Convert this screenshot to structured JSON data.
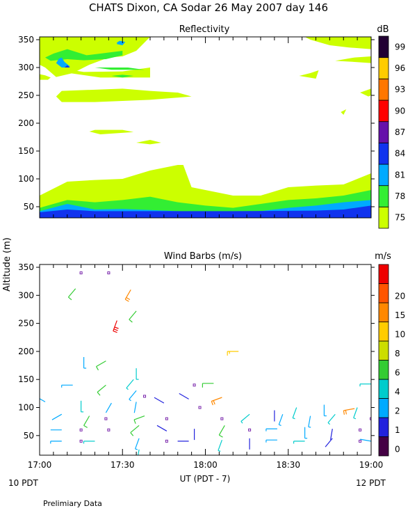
{
  "title": "CHATS Dixon, CA  Sodar  26 May 2007  day 146",
  "xlabel": "UT  (PDT - 7)",
  "ylabel": "Altitude (m)",
  "x_note_left": "10 PDT",
  "x_note_right": "12 PDT",
  "footnote": "Prelimiary Data",
  "chart_data": [
    {
      "type": "heatmap",
      "title": "Reflectivity",
      "colorbar_label": "dB",
      "colorbar_ticks": [
        "75",
        "78",
        "81",
        "84",
        "87",
        "90",
        "93",
        "96",
        "99"
      ],
      "colorbar_colors": [
        "#ccff00",
        "#33ee33",
        "#00aaff",
        "#1133ee",
        "#6611aa",
        "#ff0000",
        "#ff7700",
        "#ffcc00",
        "#220033"
      ],
      "xlim_minutes_after_1700": [
        0,
        120
      ],
      "x_ticks": [
        "17:00",
        "17:30",
        "18:00",
        "18:30",
        "19:00"
      ],
      "ylim": [
        30,
        355
      ],
      "y_ticks": [
        50,
        100,
        150,
        200,
        250,
        300,
        350
      ],
      "contour_levels": [
        {
          "level": 75,
          "lower_envelope": [
            [
              0,
              70
            ],
            [
              10,
              95
            ],
            [
              20,
              98
            ],
            [
              30,
              100
            ],
            [
              40,
              115
            ],
            [
              50,
              125
            ],
            [
              52,
              125
            ],
            [
              55,
              85
            ],
            [
              70,
              70
            ],
            [
              80,
              70
            ],
            [
              90,
              85
            ],
            [
              100,
              88
            ],
            [
              110,
              90
            ],
            [
              120,
              110
            ]
          ]
        },
        {
          "level": 78,
          "lower_envelope": [
            [
              0,
              48
            ],
            [
              10,
              62
            ],
            [
              20,
              58
            ],
            [
              30,
              62
            ],
            [
              40,
              68
            ],
            [
              50,
              58
            ],
            [
              60,
              52
            ],
            [
              70,
              48
            ],
            [
              80,
              55
            ],
            [
              90,
              62
            ],
            [
              100,
              65
            ],
            [
              110,
              70
            ],
            [
              120,
              80
            ]
          ]
        },
        {
          "level": 81,
          "lower_envelope": [
            [
              0,
              42
            ],
            [
              10,
              55
            ],
            [
              20,
              45
            ],
            [
              30,
              46
            ],
            [
              40,
              44
            ],
            [
              50,
              42
            ],
            [
              60,
              40
            ],
            [
              80,
              42
            ],
            [
              90,
              48
            ],
            [
              100,
              52
            ],
            [
              110,
              58
            ],
            [
              120,
              62
            ]
          ]
        },
        {
          "level": 84,
          "lower_envelope": [
            [
              0,
              40
            ],
            [
              10,
              45
            ],
            [
              20,
              42
            ],
            [
              70,
              42
            ],
            [
              100,
              43
            ],
            [
              110,
              45
            ],
            [
              120,
              52
            ]
          ]
        }
      ]
    },
    {
      "type": "scatter",
      "title": "Wind Barbs (m/s)",
      "colorbar_label": "m/s",
      "colorbar_ticks": [
        "0",
        "1",
        "2",
        "4",
        "6",
        "8",
        "10",
        "15",
        "20"
      ],
      "colorbar_colors": [
        "#440044",
        "#2222dd",
        "#00aaff",
        "#00cccc",
        "#33cc33",
        "#ccdd00",
        "#ffcc00",
        "#ff8800",
        "#ff5500",
        "#ee0000"
      ],
      "xlim_minutes_after_1700": [
        0,
        120
      ],
      "x_ticks": [
        "17:00",
        "17:30",
        "18:00",
        "18:30",
        "19:00"
      ],
      "ylim": [
        15,
        355
      ],
      "y_ticks": [
        50,
        100,
        150,
        200,
        250,
        300,
        350
      ],
      "barbs": [
        {
          "t": 15,
          "z": 340,
          "speed": 0,
          "dir": 0
        },
        {
          "t": 25,
          "z": 340,
          "speed": 0,
          "dir": 0
        },
        {
          "t": 13,
          "z": 312,
          "speed": 6,
          "dir": 220
        },
        {
          "t": 33,
          "z": 310,
          "speed": 10,
          "dir": 210
        },
        {
          "t": 35,
          "z": 272,
          "speed": 6,
          "dir": 220
        },
        {
          "t": 28,
          "z": 255,
          "speed": 15,
          "dir": 200
        },
        {
          "t": 72,
          "z": 200,
          "speed": 8,
          "dir": 270
        },
        {
          "t": 16,
          "z": 190,
          "speed": 3,
          "dir": 180
        },
        {
          "t": 24,
          "z": 183,
          "speed": 5,
          "dir": 240
        },
        {
          "t": 35,
          "z": 170,
          "speed": 4,
          "dir": 180
        },
        {
          "t": 34,
          "z": 150,
          "speed": 4,
          "dir": 220
        },
        {
          "t": 0,
          "z": 122,
          "speed": 8,
          "dir": 200
        },
        {
          "t": 12,
          "z": 140,
          "speed": 3,
          "dir": 270
        },
        {
          "t": 24,
          "z": 140,
          "speed": 5,
          "dir": 230
        },
        {
          "t": 56,
          "z": 140,
          "speed": 0,
          "dir": 0
        },
        {
          "t": 63,
          "z": 143,
          "speed": 6,
          "dir": 270
        },
        {
          "t": 35,
          "z": 130,
          "speed": 3,
          "dir": 220
        },
        {
          "t": 38,
          "z": 120,
          "speed": 0,
          "dir": 0
        },
        {
          "t": 15,
          "z": 112,
          "speed": 4,
          "dir": 180
        },
        {
          "t": 2,
          "z": 110,
          "speed": 3,
          "dir": 300
        },
        {
          "t": 26,
          "z": 108,
          "speed": 2,
          "dir": 210
        },
        {
          "t": 35,
          "z": 110,
          "speed": 2,
          "dir": 190
        },
        {
          "t": 45,
          "z": 108,
          "speed": 1,
          "dir": 300
        },
        {
          "t": 54,
          "z": 115,
          "speed": 1,
          "dir": 300
        },
        {
          "t": 66,
          "z": 118,
          "speed": 10,
          "dir": 250
        },
        {
          "t": 93,
          "z": 100,
          "speed": 4,
          "dir": 200
        },
        {
          "t": 103,
          "z": 105,
          "speed": 3,
          "dir": 180
        },
        {
          "t": 115,
          "z": 100,
          "speed": 4,
          "dir": 200
        },
        {
          "t": 114,
          "z": 98,
          "speed": 10,
          "dir": 260
        },
        {
          "t": 120,
          "z": 142,
          "speed": 4,
          "dir": 270
        },
        {
          "t": 8,
          "z": 88,
          "speed": 2,
          "dir": 240
        },
        {
          "t": 18,
          "z": 85,
          "speed": 6,
          "dir": 210
        },
        {
          "t": 24,
          "z": 80,
          "speed": 0,
          "dir": 0
        },
        {
          "t": 38,
          "z": 85,
          "speed": 6,
          "dir": 250
        },
        {
          "t": 46,
          "z": 80,
          "speed": 0,
          "dir": 0
        },
        {
          "t": 58,
          "z": 100,
          "speed": 0,
          "dir": 0
        },
        {
          "t": 66,
          "z": 80,
          "speed": 0,
          "dir": 0
        },
        {
          "t": 76,
          "z": 88,
          "speed": 4,
          "dir": 230
        },
        {
          "t": 85,
          "z": 95,
          "speed": 1,
          "dir": 180
        },
        {
          "t": 88,
          "z": 88,
          "speed": 3,
          "dir": 200
        },
        {
          "t": 98,
          "z": 85,
          "speed": 3,
          "dir": 190
        },
        {
          "t": 107,
          "z": 88,
          "speed": 4,
          "dir": 220
        },
        {
          "t": 120,
          "z": 80,
          "speed": 0,
          "dir": 0
        },
        {
          "t": 8,
          "z": 60,
          "speed": 2,
          "dir": 270
        },
        {
          "t": 15,
          "z": 60,
          "speed": 0,
          "dir": 0
        },
        {
          "t": 25,
          "z": 60,
          "speed": 0,
          "dir": 0
        },
        {
          "t": 36,
          "z": 68,
          "speed": 5,
          "dir": 230
        },
        {
          "t": 46,
          "z": 58,
          "speed": 1,
          "dir": 300
        },
        {
          "t": 56,
          "z": 62,
          "speed": 1,
          "dir": 180
        },
        {
          "t": 67,
          "z": 68,
          "speed": 6,
          "dir": 210
        },
        {
          "t": 76,
          "z": 60,
          "speed": 0,
          "dir": 0
        },
        {
          "t": 86,
          "z": 62,
          "speed": 3,
          "dir": 270
        },
        {
          "t": 96,
          "z": 65,
          "speed": 3,
          "dir": 180
        },
        {
          "t": 106,
          "z": 62,
          "speed": 1,
          "dir": 190
        },
        {
          "t": 116,
          "z": 60,
          "speed": 0,
          "dir": 0
        },
        {
          "t": 8,
          "z": 40,
          "speed": 3,
          "dir": 270
        },
        {
          "t": 15,
          "z": 40,
          "speed": 0,
          "dir": 0
        },
        {
          "t": 20,
          "z": 40,
          "speed": 4,
          "dir": 270
        },
        {
          "t": 36,
          "z": 45,
          "speed": 3,
          "dir": 200
        },
        {
          "t": 46,
          "z": 40,
          "speed": 0,
          "dir": 0
        },
        {
          "t": 54,
          "z": 40,
          "speed": 1,
          "dir": 270
        },
        {
          "t": 66,
          "z": 42,
          "speed": 4,
          "dir": 200
        },
        {
          "t": 76,
          "z": 45,
          "speed": 1,
          "dir": 180
        },
        {
          "t": 86,
          "z": 42,
          "speed": 3,
          "dir": 270
        },
        {
          "t": 96,
          "z": 40,
          "speed": 4,
          "dir": 270
        },
        {
          "t": 106,
          "z": 45,
          "speed": 1,
          "dir": 220
        },
        {
          "t": 116,
          "z": 40,
          "speed": 0,
          "dir": 0
        },
        {
          "t": 120,
          "z": 40,
          "speed": 2,
          "dir": 280
        },
        {
          "t": 36,
          "z": 25,
          "speed": 4,
          "dir": 190
        }
      ]
    }
  ]
}
